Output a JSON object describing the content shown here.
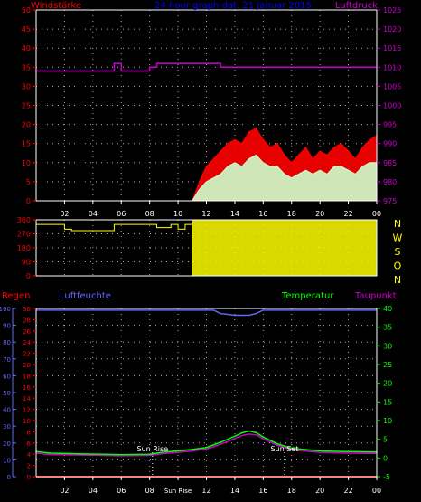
{
  "chart_data": [
    {
      "type": "line",
      "panel": "wind-and-pressure",
      "title": "24 hour graph dat. 21 Januar 2015",
      "left_label": "Windstärke",
      "right_label": "Luftdruck",
      "ylim_left": [
        0,
        50
      ],
      "ylim_right": [
        975,
        1025
      ],
      "left_ticks": [
        "0",
        "5",
        "10",
        "15",
        "20",
        "25",
        "30",
        "35",
        "40",
        "45",
        "50"
      ],
      "right_ticks": [
        "975",
        "980",
        "985",
        "990",
        "995",
        "1000",
        "1005",
        "1010",
        "1015",
        "1020",
        "1025"
      ],
      "x_ticks": [
        "02",
        "04",
        "06",
        "08",
        "10",
        "12",
        "14",
        "16",
        "18",
        "20",
        "22",
        "00"
      ],
      "grid": "dotted",
      "colors": {
        "wind_gust": "#ff0000",
        "wind_mean": "#ccffcc",
        "pressure": "#cc00cc",
        "left_axis": "#ff0000",
        "right_axis": "#cc00cc",
        "title": "#0000ff"
      },
      "series": [
        {
          "name": "Luftdruck",
          "axis": "right",
          "x": [
            0,
            5,
            5.5,
            6,
            8,
            8.5,
            11,
            13,
            15.5,
            18,
            20,
            22,
            24
          ],
          "values": [
            1009,
            1009,
            1011,
            1009,
            1010,
            1011,
            1011,
            1010,
            1010,
            1010,
            1010,
            1010,
            1010
          ]
        },
        {
          "name": "Windstärke Böen",
          "axis": "left",
          "x": [
            0,
            11,
            11.5,
            12,
            12.5,
            13,
            13.5,
            14,
            14.5,
            15,
            15.5,
            16,
            16.5,
            17,
            17.5,
            18,
            18.5,
            19,
            19.5,
            20,
            20.5,
            21,
            21.5,
            22,
            22.5,
            23,
            23.5,
            24
          ],
          "values": [
            0,
            0,
            5,
            9,
            11,
            13,
            15,
            16,
            15,
            18,
            19,
            16,
            14,
            15,
            12,
            10,
            12,
            14,
            11,
            13,
            12,
            14,
            15,
            13,
            11,
            14,
            16,
            17
          ]
        },
        {
          "name": "Windstärke Mittel",
          "axis": "left",
          "x": [
            0,
            11,
            11.5,
            12,
            12.5,
            13,
            13.5,
            14,
            14.5,
            15,
            15.5,
            16,
            16.5,
            17,
            17.5,
            18,
            18.5,
            19,
            19.5,
            20,
            20.5,
            21,
            21.5,
            22,
            22.5,
            23,
            23.5,
            24
          ],
          "values": [
            0,
            0,
            3,
            5,
            6,
            7,
            9,
            10,
            9,
            11,
            12,
            10,
            9,
            9,
            7,
            6,
            7,
            8,
            7,
            8,
            7,
            9,
            9,
            8,
            7,
            9,
            10,
            10
          ]
        }
      ]
    },
    {
      "type": "line",
      "panel": "wind-direction",
      "ylim": [
        0,
        360
      ],
      "left_ticks": [
        "0",
        "90",
        "180",
        "270",
        "360"
      ],
      "right_labels": [
        "N",
        "W",
        "S",
        "O",
        "N"
      ],
      "colors": {
        "direction": "#ffff00",
        "left_axis": "#ff0000",
        "right_axis": "#ffff00"
      },
      "series": [
        {
          "name": "Windrichtung",
          "x": [
            0,
            1.5,
            2,
            2.5,
            5,
            5.5,
            8,
            8.5,
            9.5,
            10,
            10.5,
            11,
            24
          ],
          "values": [
            330,
            330,
            300,
            290,
            290,
            330,
            330,
            310,
            330,
            300,
            330,
            0,
            340
          ]
        }
      ]
    },
    {
      "type": "line",
      "panel": "rain-humidity-temperature",
      "labels": {
        "rain": "Regen",
        "humidity": "Luftfeuchte",
        "temperature": "Temperatur",
        "dewpoint": "Taupunkt"
      },
      "ylim_rain": [
        0,
        30
      ],
      "ylim_humidity": [
        0,
        100
      ],
      "ylim_temp": [
        -5,
        40
      ],
      "rain_ticks": [
        "0",
        "2",
        "4",
        "6",
        "8",
        "10",
        "12",
        "14",
        "16",
        "18",
        "20",
        "22",
        "24",
        "26",
        "28",
        "30"
      ],
      "humidity_ticks": [
        "0",
        "10",
        "20",
        "30",
        "40",
        "50",
        "60",
        "70",
        "80",
        "90",
        "100"
      ],
      "temp_ticks": [
        "-5",
        "0",
        "5",
        "10",
        "15",
        "20",
        "25",
        "30",
        "35",
        "40"
      ],
      "x_ticks": [
        "02",
        "04",
        "06",
        "08",
        "Sun Rise",
        "12",
        "14",
        "16",
        "18",
        "20",
        "22",
        "00"
      ],
      "annotations": [
        {
          "text": "Sun Rise",
          "x": 8.2
        },
        {
          "text": "Sun Set",
          "x": 17.5
        }
      ],
      "colors": {
        "rain": "#ff0000",
        "humidity": "#6666ff",
        "temperature": "#00ff00",
        "dewpoint": "#cc00cc",
        "left_axis": "#ff0000",
        "humidity_axis": "#6666ff",
        "right_axis": "#00ff00"
      },
      "series": [
        {
          "name": "Regen",
          "axis": "rain",
          "x": [
            0,
            24
          ],
          "values": [
            0,
            0
          ]
        },
        {
          "name": "Luftfeuchte",
          "axis": "humidity",
          "x": [
            0,
            12.5,
            13,
            14,
            15,
            15.5,
            16,
            24
          ],
          "values": [
            99,
            99,
            97,
            96,
            96,
            97,
            99,
            99
          ]
        },
        {
          "name": "Temperatur",
          "axis": "temp",
          "x": [
            0,
            1,
            3,
            6,
            8,
            9,
            10,
            11,
            12,
            12.5,
            13,
            13.5,
            14,
            14.5,
            15,
            15.5,
            16,
            17,
            18,
            20,
            22,
            24
          ],
          "values": [
            1.7,
            1.3,
            1.1,
            0.9,
            1.0,
            1.6,
            1.9,
            2.3,
            2.8,
            3.5,
            4.2,
            5.0,
            5.8,
            6.7,
            7.2,
            6.8,
            5.6,
            3.8,
            2.6,
            1.9,
            1.7,
            1.6
          ]
        },
        {
          "name": "Taupunkt",
          "axis": "temp",
          "x": [
            0,
            1,
            3,
            6,
            8,
            9,
            10,
            11,
            12,
            12.5,
            13,
            13.5,
            14,
            14.5,
            15,
            15.5,
            16,
            17,
            18,
            20,
            22,
            24
          ],
          "values": [
            1.3,
            0.9,
            0.8,
            0.6,
            0.7,
            1.2,
            1.5,
            1.9,
            2.4,
            3.0,
            3.7,
            4.4,
            5.2,
            6.0,
            6.4,
            6.2,
            5.1,
            3.4,
            2.2,
            1.5,
            1.3,
            1.2
          ]
        }
      ]
    }
  ]
}
